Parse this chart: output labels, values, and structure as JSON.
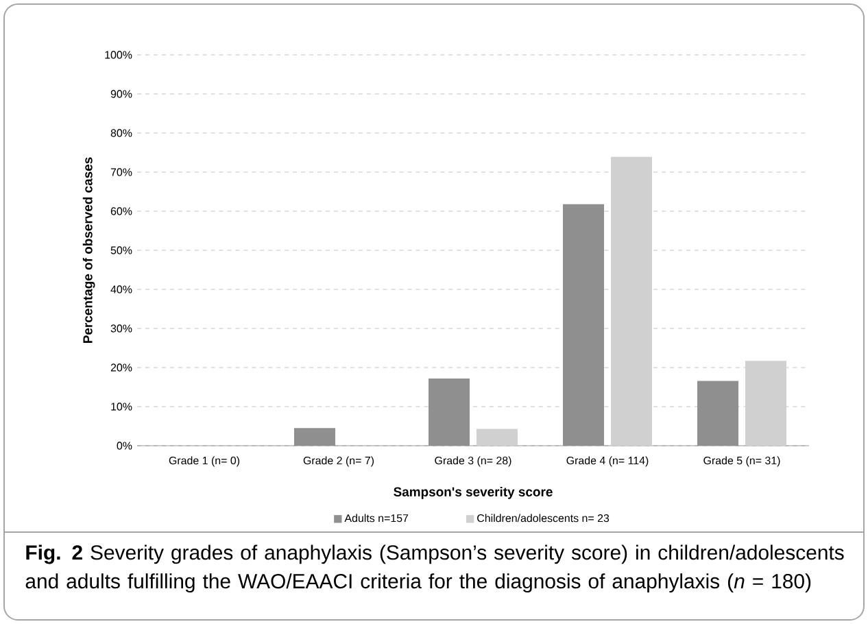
{
  "chart_data": {
    "type": "bar",
    "xlabel": "Sampson's severity score",
    "ylabel": "Percentage of observed cases",
    "categories": [
      "Grade 1 (n= 0)",
      "Grade 2 (n= 7)",
      "Grade 3 (n= 28)",
      "Grade 4 (n= 114)",
      "Grade 5 (n= 31)"
    ],
    "series": [
      {
        "name": "Adults n=157",
        "color": "#8f8f8f",
        "values": [
          0,
          4.5,
          17.2,
          61.8,
          16.6
        ]
      },
      {
        "name": "Children/adolescents n= 23",
        "color": "#d0d0d0",
        "values": [
          0,
          0,
          4.3,
          73.9,
          21.7
        ]
      }
    ],
    "ylim": [
      0,
      100
    ],
    "yticks": [
      {
        "value": 0,
        "label": "0%"
      },
      {
        "value": 10,
        "label": "10%"
      },
      {
        "value": 20,
        "label": "20%"
      },
      {
        "value": 30,
        "label": "30%"
      },
      {
        "value": 40,
        "label": "40%"
      },
      {
        "value": 50,
        "label": "50%"
      },
      {
        "value": 60,
        "label": "60%"
      },
      {
        "value": 70,
        "label": "70%"
      },
      {
        "value": 80,
        "label": "80%"
      },
      {
        "value": 90,
        "label": "90%"
      },
      {
        "value": 100,
        "label": "100%"
      }
    ],
    "grid": "y",
    "legend": "bottom",
    "annotations": [
      "**Fig. 2** Severity grades of anaphylaxis (Sampson’s severity score) in children/adolescents and adults fulfilling the WAO/EAACI criteria for the diagnosis of anaphylaxis (*n* = 180)"
    ]
  }
}
